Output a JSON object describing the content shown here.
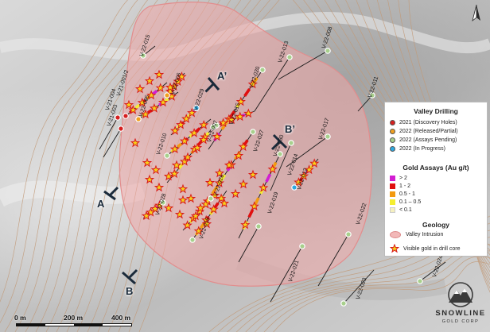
{
  "map": {
    "section_labels": [
      "A",
      "A’",
      "B",
      "B’"
    ],
    "drill_holes": [
      "V-21-004",
      "V-21-003",
      "V-21-001/2",
      "V-22-005",
      "V-22-006",
      "V-22-015",
      "V-22-029",
      "V-22-010",
      "V-22-020",
      "V-22-015",
      "V-22-007",
      "V-22-027",
      "V-22-030",
      "V-22-013",
      "V-22-008",
      "V-22-011",
      "V-22-017",
      "V-22-012",
      "V-22-014",
      "V-22-028",
      "V-22-026",
      "V-22-018",
      "V-22-019",
      "V-22-022",
      "V-22-021",
      "V-22-023",
      "V-22-024"
    ]
  },
  "legend": {
    "title": "Valley Drilling",
    "holes": [
      {
        "label": "2021 (Discovery Holes)",
        "color": "#d62020"
      },
      {
        "label": "2022 (Released/Partial)",
        "color": "#f0a020"
      },
      {
        "label": "2022 (Assays Pending)",
        "color": "#a8d08d"
      },
      {
        "label": "2022 (In Progress)",
        "color": "#2ea8e0"
      }
    ],
    "assay_title": "Gold Assays (Au g/t)",
    "assays": [
      {
        "label": "> 2",
        "color": "#d21ed2"
      },
      {
        "label": "1 - 2",
        "color": "#e01010"
      },
      {
        "label": "0.5 - 1",
        "color": "#f39a10"
      },
      {
        "label": "0.1 – 0.5",
        "color": "#f5ee30"
      },
      {
        "label": "< 0.1",
        "color": "#f5f0c0"
      }
    ],
    "geology_title": "Geology",
    "geology": "Valley Intrusion",
    "visible_gold": "Visible gold in drill core"
  },
  "scale": {
    "labels": [
      "0 m",
      "200 m",
      "400 m"
    ]
  },
  "logo": {
    "name": "SNOWLINE",
    "sub": "GOLD CORP"
  }
}
